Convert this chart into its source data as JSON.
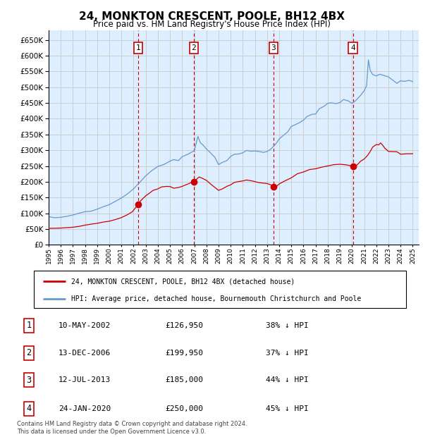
{
  "title": "24, MONKTON CRESCENT, POOLE, BH12 4BX",
  "subtitle": "Price paid vs. HM Land Registry's House Price Index (HPI)",
  "legend_line1": "24, MONKTON CRESCENT, POOLE, BH12 4BX (detached house)",
  "legend_line2": "HPI: Average price, detached house, Bournemouth Christchurch and Poole",
  "footer": "Contains HM Land Registry data © Crown copyright and database right 2024.\nThis data is licensed under the Open Government Licence v3.0.",
  "transactions": [
    {
      "num": 1,
      "date": "10-MAY-2002",
      "price": 126950,
      "pct": "38% ↓ HPI",
      "x_year": 2002.36
    },
    {
      "num": 2,
      "date": "13-DEC-2006",
      "price": 199950,
      "pct": "37% ↓ HPI",
      "x_year": 2006.95
    },
    {
      "num": 3,
      "date": "12-JUL-2013",
      "price": 185000,
      "pct": "44% ↓ HPI",
      "x_year": 2013.53
    },
    {
      "num": 4,
      "date": "24-JAN-2020",
      "price": 250000,
      "pct": "45% ↓ HPI",
      "x_year": 2020.07
    }
  ],
  "hpi_color": "#6699cc",
  "price_color": "#cc0000",
  "transaction_color": "#cc0000",
  "vline_color": "#cc0000",
  "box_color": "#cc0000",
  "grid_color": "#cccccc",
  "bg_color": "#ddeeff",
  "ylim": [
    0,
    680000
  ],
  "xlim_start": 1995.0,
  "xlim_end": 2025.5,
  "hpi_anchors": [
    [
      1995.0,
      88000
    ],
    [
      1995.5,
      86000
    ],
    [
      1996.0,
      87000
    ],
    [
      1996.5,
      90000
    ],
    [
      1997.0,
      95000
    ],
    [
      1997.5,
      100000
    ],
    [
      1998.0,
      105000
    ],
    [
      1998.5,
      108000
    ],
    [
      1999.0,
      112000
    ],
    [
      1999.5,
      120000
    ],
    [
      2000.0,
      128000
    ],
    [
      2000.5,
      138000
    ],
    [
      2001.0,
      148000
    ],
    [
      2001.5,
      162000
    ],
    [
      2002.0,
      178000
    ],
    [
      2002.5,
      200000
    ],
    [
      2003.0,
      218000
    ],
    [
      2003.5,
      235000
    ],
    [
      2004.0,
      248000
    ],
    [
      2004.5,
      258000
    ],
    [
      2005.0,
      262000
    ],
    [
      2005.3,
      270000
    ],
    [
      2005.7,
      268000
    ],
    [
      2006.0,
      275000
    ],
    [
      2006.5,
      288000
    ],
    [
      2007.0,
      302000
    ],
    [
      2007.3,
      345000
    ],
    [
      2007.5,
      330000
    ],
    [
      2007.7,
      315000
    ],
    [
      2008.0,
      305000
    ],
    [
      2008.3,
      295000
    ],
    [
      2008.7,
      275000
    ],
    [
      2009.0,
      258000
    ],
    [
      2009.3,
      260000
    ],
    [
      2009.7,
      272000
    ],
    [
      2010.0,
      282000
    ],
    [
      2010.3,
      290000
    ],
    [
      2010.7,
      285000
    ],
    [
      2011.0,
      288000
    ],
    [
      2011.3,
      300000
    ],
    [
      2011.7,
      295000
    ],
    [
      2012.0,
      298000
    ],
    [
      2012.3,
      295000
    ],
    [
      2012.7,
      295000
    ],
    [
      2013.0,
      300000
    ],
    [
      2013.3,
      308000
    ],
    [
      2013.7,
      318000
    ],
    [
      2014.0,
      330000
    ],
    [
      2014.3,
      345000
    ],
    [
      2014.7,
      360000
    ],
    [
      2015.0,
      370000
    ],
    [
      2015.3,
      380000
    ],
    [
      2015.7,
      388000
    ],
    [
      2016.0,
      395000
    ],
    [
      2016.3,
      408000
    ],
    [
      2016.7,
      415000
    ],
    [
      2017.0,
      420000
    ],
    [
      2017.3,
      430000
    ],
    [
      2017.7,
      440000
    ],
    [
      2018.0,
      445000
    ],
    [
      2018.3,
      452000
    ],
    [
      2018.7,
      455000
    ],
    [
      2019.0,
      452000
    ],
    [
      2019.3,
      455000
    ],
    [
      2019.7,
      458000
    ],
    [
      2020.0,
      452000
    ],
    [
      2020.3,
      462000
    ],
    [
      2020.7,
      478000
    ],
    [
      2021.0,
      490000
    ],
    [
      2021.2,
      510000
    ],
    [
      2021.35,
      580000
    ],
    [
      2021.5,
      555000
    ],
    [
      2021.7,
      540000
    ],
    [
      2022.0,
      530000
    ],
    [
      2022.3,
      535000
    ],
    [
      2022.5,
      540000
    ],
    [
      2022.7,
      535000
    ],
    [
      2023.0,
      530000
    ],
    [
      2023.3,
      525000
    ],
    [
      2023.7,
      520000
    ],
    [
      2024.0,
      518000
    ],
    [
      2024.3,
      515000
    ],
    [
      2024.7,
      520000
    ],
    [
      2025.0,
      522000
    ]
  ],
  "price_anchors": [
    [
      1995.0,
      52000
    ],
    [
      1995.5,
      52500
    ],
    [
      1996.0,
      53000
    ],
    [
      1996.5,
      54000
    ],
    [
      1997.0,
      55000
    ],
    [
      1997.5,
      58000
    ],
    [
      1998.0,
      62000
    ],
    [
      1998.5,
      65000
    ],
    [
      1999.0,
      68000
    ],
    [
      1999.5,
      72000
    ],
    [
      2000.0,
      75000
    ],
    [
      2000.5,
      80000
    ],
    [
      2001.0,
      85000
    ],
    [
      2001.5,
      95000
    ],
    [
      2001.9,
      105000
    ],
    [
      2002.1,
      115000
    ],
    [
      2002.36,
      126950
    ],
    [
      2002.6,
      140000
    ],
    [
      2003.0,
      155000
    ],
    [
      2003.3,
      165000
    ],
    [
      2003.6,
      172000
    ],
    [
      2004.0,
      178000
    ],
    [
      2004.3,
      182000
    ],
    [
      2004.7,
      185000
    ],
    [
      2005.0,
      183000
    ],
    [
      2005.3,
      180000
    ],
    [
      2005.7,
      182000
    ],
    [
      2006.0,
      185000
    ],
    [
      2006.5,
      192000
    ],
    [
      2006.95,
      199950
    ],
    [
      2007.2,
      210000
    ],
    [
      2007.4,
      215000
    ],
    [
      2007.6,
      212000
    ],
    [
      2008.0,
      205000
    ],
    [
      2008.3,
      195000
    ],
    [
      2008.7,
      180000
    ],
    [
      2009.0,
      173000
    ],
    [
      2009.3,
      178000
    ],
    [
      2009.7,
      185000
    ],
    [
      2010.0,
      190000
    ],
    [
      2010.3,
      198000
    ],
    [
      2010.7,
      200000
    ],
    [
      2011.0,
      202000
    ],
    [
      2011.3,
      205000
    ],
    [
      2011.7,
      202000
    ],
    [
      2012.0,
      200000
    ],
    [
      2012.3,
      198000
    ],
    [
      2012.7,
      196000
    ],
    [
      2013.0,
      195000
    ],
    [
      2013.3,
      190000
    ],
    [
      2013.53,
      185000
    ],
    [
      2013.8,
      188000
    ],
    [
      2014.0,
      193000
    ],
    [
      2014.5,
      205000
    ],
    [
      2015.0,
      215000
    ],
    [
      2015.5,
      225000
    ],
    [
      2016.0,
      232000
    ],
    [
      2016.5,
      238000
    ],
    [
      2017.0,
      242000
    ],
    [
      2017.5,
      248000
    ],
    [
      2018.0,
      252000
    ],
    [
      2018.5,
      255000
    ],
    [
      2019.0,
      256000
    ],
    [
      2019.5,
      255000
    ],
    [
      2020.07,
      250000
    ],
    [
      2020.4,
      255000
    ],
    [
      2020.7,
      265000
    ],
    [
      2021.0,
      275000
    ],
    [
      2021.3,
      285000
    ],
    [
      2021.5,
      295000
    ],
    [
      2021.7,
      308000
    ],
    [
      2022.0,
      315000
    ],
    [
      2022.2,
      320000
    ],
    [
      2022.35,
      322000
    ],
    [
      2022.5,
      315000
    ],
    [
      2022.7,
      305000
    ],
    [
      2023.0,
      298000
    ],
    [
      2023.3,
      295000
    ],
    [
      2023.7,
      292000
    ],
    [
      2024.0,
      290000
    ],
    [
      2024.5,
      288000
    ],
    [
      2025.0,
      287000
    ]
  ]
}
